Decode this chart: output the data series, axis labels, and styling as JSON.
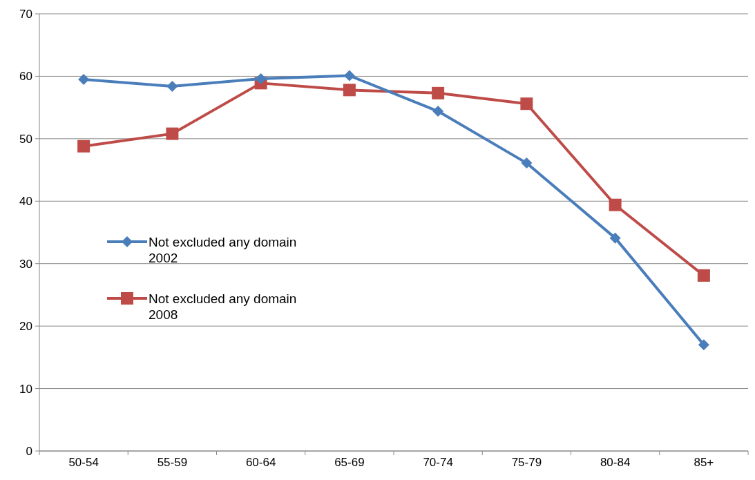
{
  "chart_data": {
    "type": "line",
    "categories": [
      "50-54",
      "55-59",
      "60-64",
      "65-69",
      "70-74",
      "75-79",
      "80-84",
      "85+"
    ],
    "ylim": [
      0,
      70
    ],
    "yticks": [
      0,
      10,
      20,
      30,
      40,
      50,
      60,
      70
    ],
    "grid": "y",
    "legend": "left",
    "series": [
      {
        "name": "Not excluded any domain 2002",
        "color": "#4a7ebb",
        "marker": "diamond",
        "values": [
          59.5,
          58.4,
          59.6,
          60.1,
          54.4,
          46.1,
          34.1,
          17.0
        ]
      },
      {
        "name": "Not excluded any domain 2008",
        "color": "#be4b48",
        "marker": "square",
        "values": [
          48.8,
          50.8,
          58.9,
          57.8,
          57.3,
          55.6,
          39.4,
          28.1
        ]
      }
    ]
  }
}
